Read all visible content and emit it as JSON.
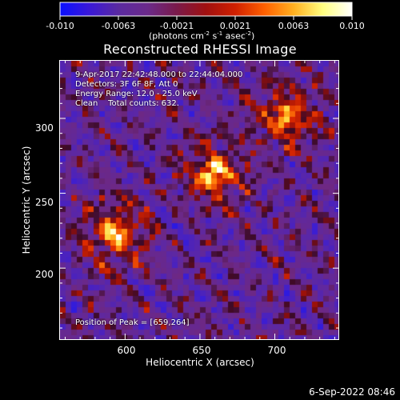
{
  "colorbar": {
    "tick_labels": [
      "-0.010",
      "-0.0063",
      "-0.0021",
      "0.0021",
      "0.0063",
      "0.010"
    ],
    "units_prefix": "(photons cm",
    "units_exp1": "-2",
    "units_mid": " s",
    "units_exp2": "-1",
    "units_mid2": " asec",
    "units_exp3": "-2",
    "units_suffix": ")",
    "colors": [
      "#0a10ff",
      "#3a18d8",
      "#5a2aa0",
      "#6b2a8a",
      "#7a1a4a",
      "#a01010",
      "#d02000",
      "#ff6000",
      "#ffb020",
      "#ffff80",
      "#ffffff"
    ]
  },
  "title": "Reconstructed RHESSI Image",
  "info": {
    "time_range": "9-Apr-2017 22:42:48.000 to 22:44:04.000",
    "detectors": "Detectors: 3F 6F 8F, Att 0",
    "energy": "Energy Range: 12.0 - 25.0 keV",
    "clean_label": "Clean",
    "total_counts": "Total counts: 632.",
    "peak": "Position of Peak = [659,264]"
  },
  "axes": {
    "x_label": "Heliocentric X (arcsec)",
    "y_label": "Heliocentric Y (arcsec)",
    "x_ticks": [
      {
        "value": 600,
        "label": "600"
      },
      {
        "value": 650,
        "label": "650"
      },
      {
        "value": 700,
        "label": "700"
      }
    ],
    "y_ticks": [
      {
        "value": 300,
        "label": "300"
      },
      {
        "value": 250,
        "label": "250"
      },
      {
        "value": 200,
        "label": "200"
      }
    ],
    "x_range": [
      556,
      743
    ],
    "y_range": [
      152,
      339
    ]
  },
  "timestamp": "6-Sep-2022 08:46",
  "sources": [
    {
      "name": "central",
      "x": 659,
      "y": 264,
      "peak": 1.0
    },
    {
      "name": "lower-left",
      "x": 593,
      "y": 223,
      "peak": 0.95
    },
    {
      "name": "upper-right",
      "x": 707,
      "y": 302,
      "peak": 0.9
    }
  ]
}
